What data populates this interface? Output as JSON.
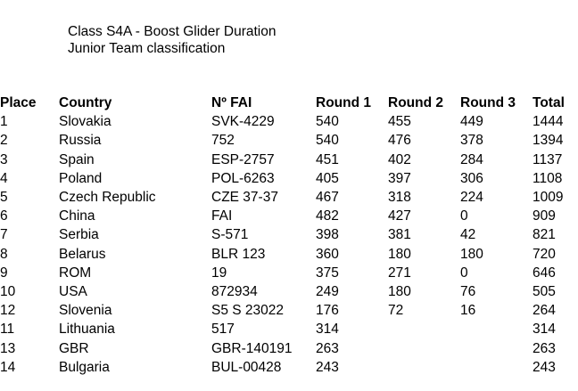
{
  "header": {
    "title_line1": "Class S4A - Boost Glider Duration",
    "title_line2": "Junior Team classification"
  },
  "table": {
    "columns": [
      "Place",
      "Country",
      "Nº FAI",
      "Round 1",
      "Round 2",
      "Round 3",
      "Total"
    ],
    "rows": [
      [
        "1",
        "Slovakia",
        "SVK-4229",
        "540",
        "455",
        "449",
        "1444"
      ],
      [
        "2",
        "Russia",
        "752",
        "540",
        "476",
        "378",
        "1394"
      ],
      [
        "3",
        "Spain",
        "ESP-2757",
        "451",
        "402",
        "284",
        "1137"
      ],
      [
        "4",
        "Poland",
        "POL-6263",
        "405",
        "397",
        "306",
        "1108"
      ],
      [
        "5",
        "Czech Republic",
        "CZE 37-37",
        "467",
        "318",
        "224",
        "1009"
      ],
      [
        "6",
        "China",
        "FAI",
        "482",
        "427",
        "0",
        "909"
      ],
      [
        "7",
        "Serbia",
        "S-571",
        "398",
        "381",
        "42",
        "821"
      ],
      [
        "8",
        "Belarus",
        "BLR 123",
        "360",
        "180",
        "180",
        "720"
      ],
      [
        "9",
        "ROM",
        "19",
        "375",
        "271",
        "0",
        "646"
      ],
      [
        "10",
        "USA",
        "872934",
        "249",
        "180",
        "76",
        "505"
      ],
      [
        "12",
        "Slovenia",
        "S5 S 23022",
        "176",
        "72",
        "16",
        "264"
      ],
      [
        "11",
        "Lithuania",
        "517",
        "314",
        "",
        "",
        "314"
      ],
      [
        "13",
        "GBR",
        "GBR-140191",
        "263",
        "",
        "",
        "263"
      ],
      [
        "14",
        "Bulgaria",
        "BUL-00428",
        "243",
        "",
        "",
        "243"
      ]
    ]
  }
}
